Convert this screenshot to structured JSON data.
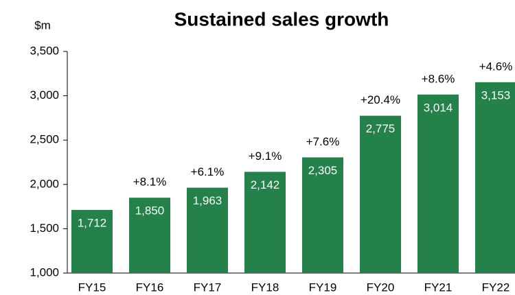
{
  "chart_data": {
    "type": "bar",
    "title": "Sustained sales growth",
    "y_axis_label": "$m",
    "categories": [
      "FY15",
      "FY16",
      "FY17",
      "FY18",
      "FY19",
      "FY20",
      "FY21",
      "FY22"
    ],
    "values": [
      1712,
      1850,
      1963,
      2142,
      2305,
      2775,
      3014,
      3153
    ],
    "value_labels": [
      "1,712",
      "1,850",
      "1,963",
      "2,142",
      "2,305",
      "2,775",
      "3,014",
      "3,153"
    ],
    "growth_labels": [
      null,
      "+8.1%",
      "+6.1%",
      "+9.1%",
      "+7.6%",
      "+20.4%",
      "+8.6%",
      "+4.6%"
    ],
    "color": "#25814a",
    "ylim": [
      1000,
      3500
    ],
    "yticks": [
      {
        "value": 1000,
        "label": "1,000"
      },
      {
        "value": 1500,
        "label": "1,500"
      },
      {
        "value": 2000,
        "label": "2,000"
      },
      {
        "value": 2500,
        "label": "2,500"
      },
      {
        "value": 3000,
        "label": "3,000"
      },
      {
        "value": 3500,
        "label": "3,500"
      }
    ],
    "grid": false
  }
}
